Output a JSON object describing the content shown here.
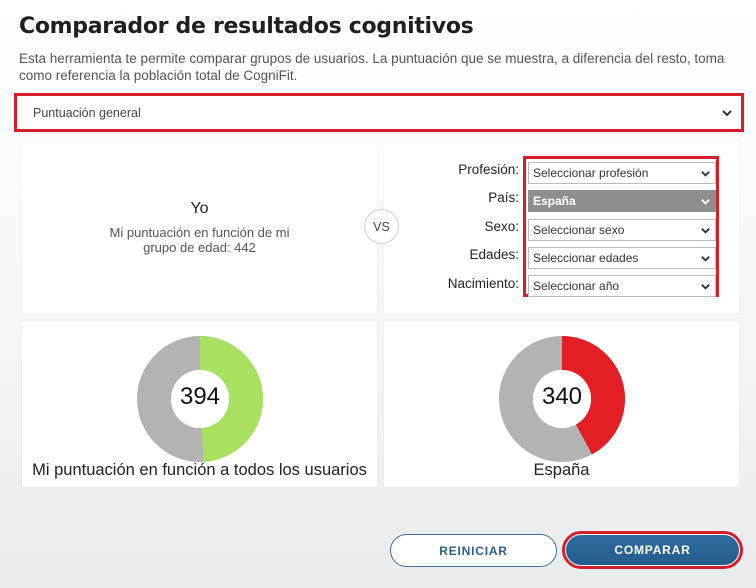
{
  "page": {
    "title": "Comparador de resultados cognitivos",
    "description": "Esta herramienta te permite comparar grupos de usuarios. La puntuación que se muestra, a diferencia del resto, toma como referencia la población total de CogniFit."
  },
  "main_select": {
    "value": "Puntuación general",
    "icon": "chevron-down-icon"
  },
  "yo_panel": {
    "title": "Yo",
    "subtitle": "Mi puntuación en función de mi grupo de edad: 442"
  },
  "vs_label": "VS",
  "filters": [
    {
      "label": "Profesión:",
      "value": "Seleccionar profesión",
      "active": false
    },
    {
      "label": "País:",
      "value": "España",
      "active": true
    },
    {
      "label": "Sexo:",
      "value": "Seleccionar sexo",
      "active": false
    },
    {
      "label": "Edades:",
      "value": "Seleccionar edades",
      "active": false
    },
    {
      "label": "Nacimiento:",
      "value": "Seleccionar año",
      "active": false
    }
  ],
  "charts": [
    {
      "score": "394",
      "fraction": 0.49,
      "color": "#a8e05f",
      "rest_color": "#b3b3b3",
      "label": "Mi puntuación en función a todos los usuarios"
    },
    {
      "score": "340",
      "fraction": 0.42,
      "color": "#e31e24",
      "rest_color": "#b3b3b3",
      "label": "España"
    }
  ],
  "buttons": {
    "reset": "REINICIAR",
    "compare": "COMPARAR"
  },
  "colors": {
    "highlight": "#d61f2b",
    "primary": "#2d5f8a"
  }
}
